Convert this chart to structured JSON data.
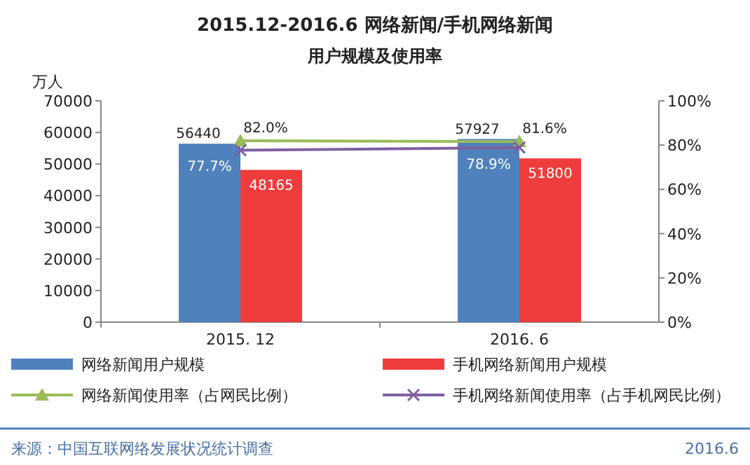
{
  "chart_data": {
    "type": "bar",
    "title": "2015.12-2016.6 网络新闻/手机网络新闻",
    "subtitle": "用户规模及使用率",
    "ylabel": "万人",
    "categories": [
      "2015. 12",
      "2016. 6"
    ],
    "series": [
      {
        "name": "网络新闻用户规模",
        "color": "#4f81bd",
        "values": [
          56440,
          57927
        ],
        "value_labels": [
          "56440",
          "57927"
        ]
      },
      {
        "name": "手机网络新闻用户规模",
        "color": "#ef3c3c",
        "values": [
          48165,
          51800
        ],
        "value_labels": [
          "48165",
          "51800"
        ]
      },
      {
        "name": "网络新闻使用率（占网民比例）",
        "type": "line",
        "axis": "y2",
        "color": "#9bbb59",
        "marker": "triangle",
        "values": [
          82.0,
          81.6
        ],
        "value_labels": [
          "82.0%",
          "81.6%"
        ]
      },
      {
        "name": "手机网络新闻使用率（占手机网民比例）",
        "type": "line",
        "axis": "y2",
        "color": "#7f60a0",
        "marker": "cross",
        "values": [
          77.7,
          78.9
        ],
        "value_labels": [
          "77.7%",
          "78.9%"
        ]
      }
    ],
    "ylim": [
      0,
      70000
    ],
    "yticks": [
      0,
      10000,
      20000,
      30000,
      40000,
      50000,
      60000,
      70000
    ],
    "y2lim": [
      0,
      100
    ],
    "y2ticks": [
      {
        "value": 0,
        "label": "0%"
      },
      {
        "value": 20,
        "label": "20%"
      },
      {
        "value": 40,
        "label": "40%"
      },
      {
        "value": 60,
        "label": "60%"
      },
      {
        "value": 80,
        "label": "80%"
      },
      {
        "value": 100,
        "label": "100%"
      }
    ],
    "grid": false,
    "legend": "bottom",
    "annotations": [
      "来源：中国互联网络发展状况统计调查",
      "2016.6"
    ]
  }
}
